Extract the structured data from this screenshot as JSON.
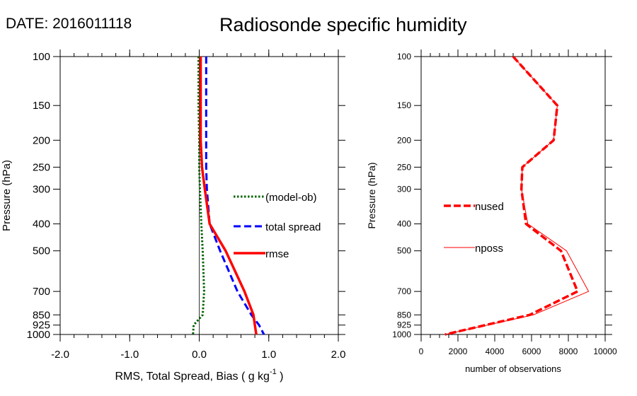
{
  "date_label": "DATE: 2016011118",
  "title": "Radiosonde specific humidity",
  "chart_data": [
    {
      "type": "line",
      "ylabel": "Pressure (hPa)",
      "xlabel_prefix": "RMS, Total Spread, Bias ( g kg",
      "xlabel_sup": "-1",
      "xlabel_suffix": " )",
      "xlim": [
        -2.0,
        2.0
      ],
      "ylim": [
        1000,
        100
      ],
      "y_scale": "log",
      "x_ticks": [
        -2.0,
        -1.0,
        0.0,
        1.0,
        2.0
      ],
      "x_tick_labels": [
        "-2.0",
        "-1.0",
        "0.0",
        "1.0",
        "2.0"
      ],
      "y_ticks": [
        100,
        150,
        200,
        250,
        300,
        400,
        500,
        700,
        850,
        925,
        1000
      ],
      "y_tick_labels": [
        "100",
        "150",
        "200",
        "250",
        "300",
        "400",
        "500",
        "700",
        "850",
        "925",
        "1000"
      ],
      "zero_line": 0.0,
      "series": [
        {
          "name": "(model-ob)",
          "color": "#006400",
          "style": "dotted",
          "pressure": [
            100,
            150,
            200,
            250,
            300,
            400,
            500,
            700,
            850,
            925,
            1000
          ],
          "values": [
            -0.01,
            -0.01,
            0.0,
            0.0,
            0.01,
            0.03,
            0.05,
            0.07,
            0.05,
            -0.08,
            -0.09
          ]
        },
        {
          "name": "total spread",
          "color": "#0000ff",
          "style": "dashed",
          "pressure": [
            100,
            150,
            200,
            250,
            300,
            400,
            500,
            700,
            850,
            925,
            1000
          ],
          "values": [
            0.1,
            0.1,
            0.1,
            0.1,
            0.11,
            0.15,
            0.3,
            0.55,
            0.75,
            0.86,
            0.93
          ]
        },
        {
          "name": "rmse",
          "color": "#ff0000",
          "style": "solid",
          "pressure": [
            100,
            150,
            200,
            250,
            300,
            400,
            500,
            700,
            850,
            925,
            1000
          ],
          "values": [
            0.02,
            0.02,
            0.02,
            0.04,
            0.08,
            0.15,
            0.38,
            0.65,
            0.78,
            0.8,
            0.82
          ]
        }
      ]
    },
    {
      "type": "line",
      "ylabel": "Pressure (hPa)",
      "xlabel": "number of observations",
      "xlim": [
        0,
        10000
      ],
      "ylim": [
        1000,
        100
      ],
      "y_scale": "log",
      "x_ticks": [
        0,
        2000,
        4000,
        6000,
        8000,
        10000
      ],
      "x_tick_labels": [
        "0",
        "2000",
        "4000",
        "6000",
        "8000",
        "10000"
      ],
      "y_ticks": [
        100,
        150,
        200,
        250,
        300,
        400,
        500,
        700,
        850,
        925,
        1000
      ],
      "y_tick_labels": [
        "100",
        "150",
        "200",
        "250",
        "300",
        "400",
        "500",
        "700",
        "850",
        "925",
        "1000"
      ],
      "series": [
        {
          "name": "nused",
          "color": "#ff0000",
          "style": "dashed-thick",
          "pressure": [
            100,
            150,
            200,
            250,
            300,
            400,
            500,
            700,
            850,
            925,
            1000
          ],
          "values": [
            5000,
            7400,
            7200,
            5500,
            5450,
            5700,
            7600,
            8500,
            5900,
            3500,
            1300
          ]
        },
        {
          "name": "nposs",
          "color": "#ff0000",
          "style": "thin",
          "pressure": [
            100,
            150,
            200,
            250,
            300,
            400,
            500,
            700,
            850,
            925,
            1000
          ],
          "values": [
            5000,
            7400,
            7200,
            5500,
            5450,
            5800,
            7900,
            9100,
            6100,
            3600,
            1300
          ]
        }
      ]
    }
  ]
}
